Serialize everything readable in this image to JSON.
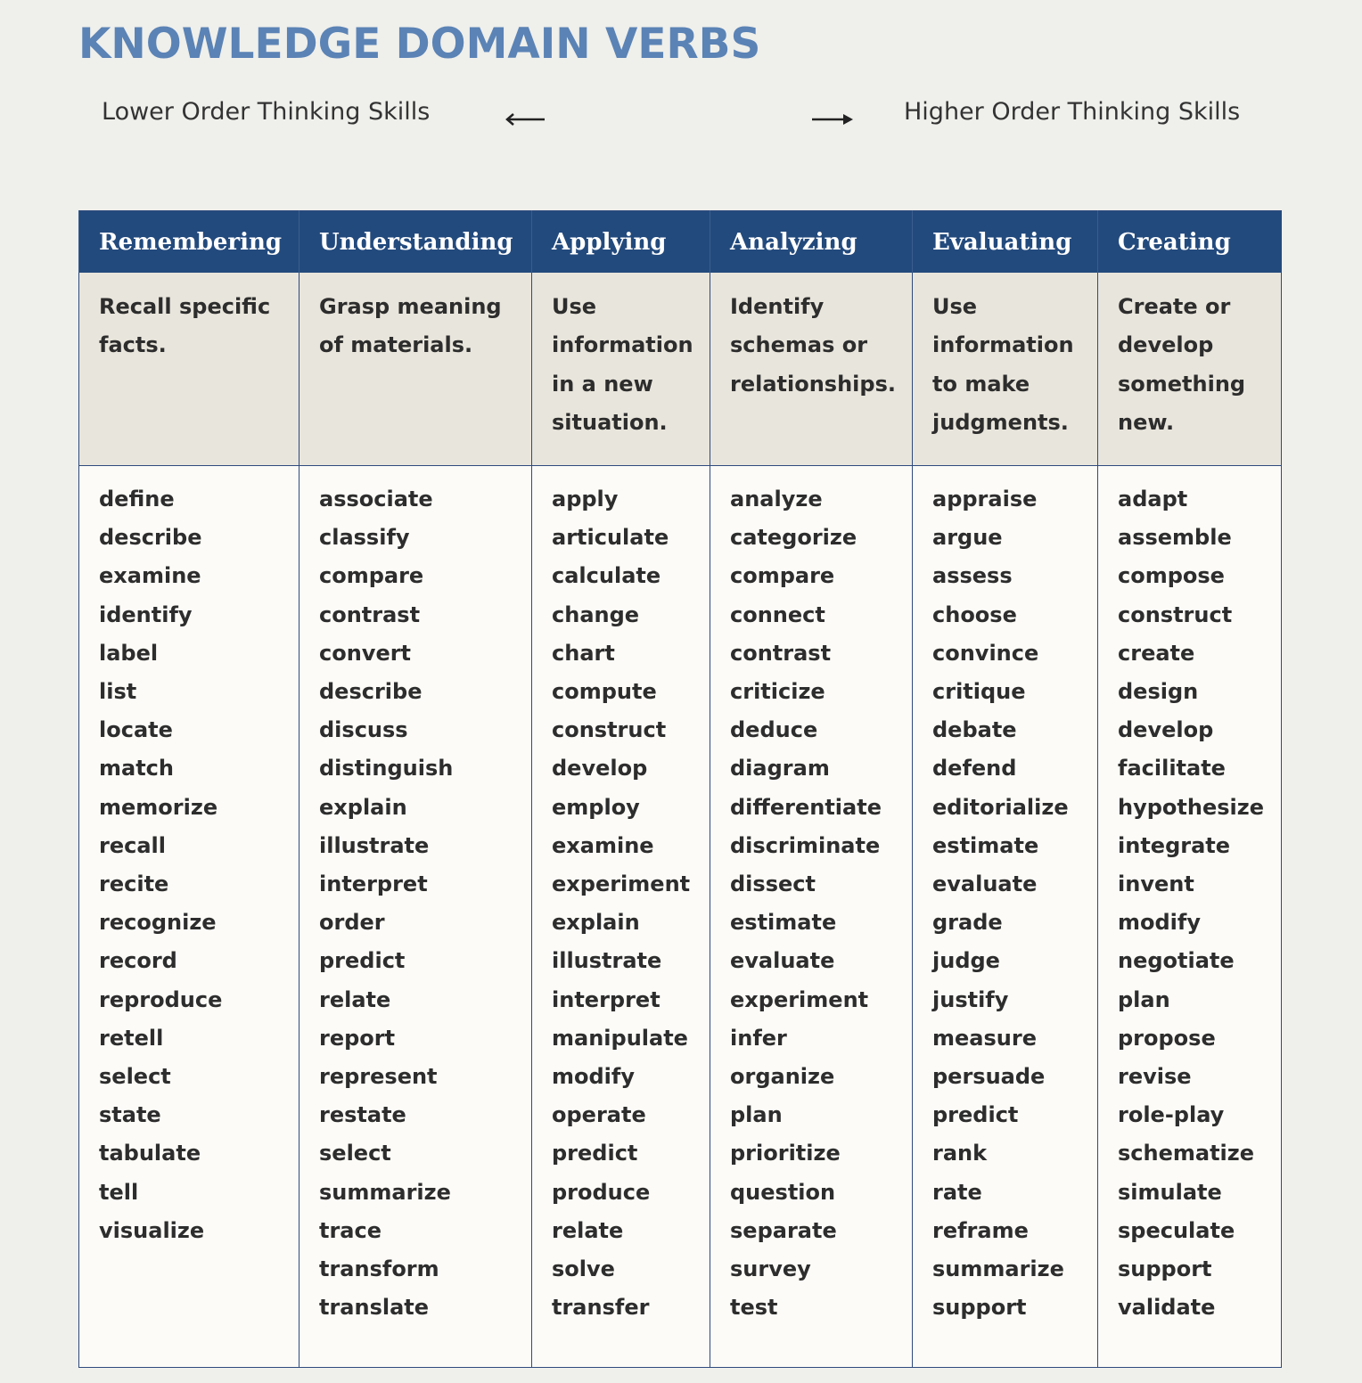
{
  "title": "KNOWLEDGE DOMAIN VERBS",
  "scale": {
    "lower_label": "Lower Order Thinking Skills",
    "higher_label": "Higher Order Thinking Skills",
    "left_arrow_icon": "left-arrow-icon",
    "right_arrow_icon": "right-arrow-icon"
  },
  "colors": {
    "title": "#5b83b5",
    "header_bg": "#234a7d",
    "header_text": "#ffffff",
    "description_bg": "#e8e5dc",
    "verbs_bg": "#fcfbf7",
    "page_bg": "#efefeb"
  },
  "columns": [
    {
      "header": "Remembering",
      "description": "Recall specific facts.",
      "verbs": [
        "define",
        "describe",
        "examine",
        "identify",
        "label",
        "list",
        "locate",
        "match",
        "memorize",
        "recall",
        "recite",
        "recognize",
        "record",
        "reproduce",
        "retell",
        "select",
        "state",
        "tabulate",
        "tell",
        "visualize"
      ]
    },
    {
      "header": "Understanding",
      "description": "Grasp meaning of materials.",
      "verbs": [
        "associate",
        "classify",
        "compare",
        "contrast",
        "convert",
        "describe",
        "discuss",
        "distinguish",
        "explain",
        "illustrate",
        "interpret",
        "order",
        "predict",
        "relate",
        "report",
        "represent",
        "restate",
        "select",
        "summarize",
        "trace",
        "transform",
        "translate"
      ]
    },
    {
      "header": "Applying",
      "description": "Use information in a new situation.",
      "verbs": [
        "apply",
        "articulate",
        "calculate",
        "change",
        "chart",
        "compute",
        "construct",
        "develop",
        "employ",
        "examine",
        "experiment",
        "explain",
        "illustrate",
        "interpret",
        "manipulate",
        "modify",
        "operate",
        "predict",
        "produce",
        "relate",
        "solve",
        "transfer"
      ]
    },
    {
      "header": "Analyzing",
      "description": "Identify schemas or relationships.",
      "verbs": [
        "analyze",
        "categorize",
        "compare",
        "connect",
        "contrast",
        "criticize",
        "deduce",
        "diagram",
        "differentiate",
        "discriminate",
        "dissect",
        "estimate",
        "evaluate",
        "experiment",
        "infer",
        "organize",
        "plan",
        "prioritize",
        "question",
        "separate",
        "survey",
        "test"
      ]
    },
    {
      "header": "Evaluating",
      "description": "Use information to make judgments.",
      "verbs": [
        "appraise",
        "argue",
        "assess",
        "choose",
        "convince",
        "critique",
        "debate",
        "defend",
        "editorialize",
        "estimate",
        "evaluate",
        "grade",
        "judge",
        "justify",
        "measure",
        "persuade",
        "predict",
        "rank",
        "rate",
        "reframe",
        "summarize",
        "support"
      ]
    },
    {
      "header": "Creating",
      "description": "Create or develop something new.",
      "verbs": [
        "adapt",
        "assemble",
        "compose",
        "construct",
        "create",
        "design",
        "develop",
        "facilitate",
        "hypothesize",
        "integrate",
        "invent",
        "modify",
        "negotiate",
        "plan",
        "propose",
        "revise",
        "role-play",
        "schematize",
        "simulate",
        "speculate",
        "support",
        "validate"
      ]
    }
  ]
}
